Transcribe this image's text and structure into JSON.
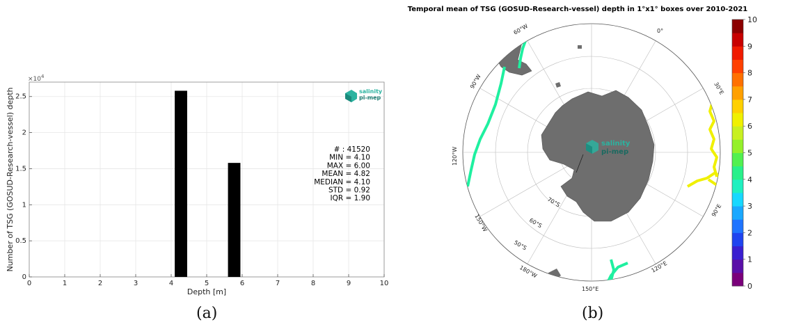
{
  "chart_data": [
    {
      "type": "bar",
      "panel_label": "(a)",
      "xlabel": "Depth [m]",
      "ylabel": "Number of TSG (GOSUD-Research-vessel) depth",
      "y_multiplier": "×10",
      "y_multiplier_exp": "4",
      "xlim": [
        0,
        10
      ],
      "ylim": [
        0,
        27000
      ],
      "x_ticks": [
        "0",
        "1",
        "2",
        "3",
        "4",
        "5",
        "6",
        "7",
        "8",
        "9",
        "10"
      ],
      "y_ticks": [
        {
          "v": 0,
          "t": "0"
        },
        {
          "v": 5000,
          "t": "0.5"
        },
        {
          "v": 10000,
          "t": "1"
        },
        {
          "v": 15000,
          "t": "1.5"
        },
        {
          "v": 20000,
          "t": "2"
        },
        {
          "v": 25000,
          "t": "2.5"
        }
      ],
      "bars": [
        {
          "x0": 4.1,
          "x1": 4.45,
          "value": 25800
        },
        {
          "x0": 5.6,
          "x1": 5.95,
          "value": 15800
        }
      ],
      "bar_color": "#000000",
      "grid": true,
      "stats": [
        "# : 41520",
        "MIN = 4.10",
        "MAX =  6.00",
        "MEAN = 4.82",
        "MEDIAN = 4.10",
        "STD = 0.92",
        "IQR = 1.90"
      ],
      "logo": {
        "line1": "salinity",
        "line2": "pi-mep"
      }
    },
    {
      "type": "map",
      "panel_label": "(b)",
      "title": "Temporal mean of TSG (GOSUD-Research-vessel) depth in 1°x1° boxes over 2010-2021",
      "projection": "south-polar-stereographic",
      "lon_labels": [
        "0°",
        "30°E",
        "60°W",
        "90°W",
        "90°E",
        "120°W",
        "120°E",
        "150°W",
        "150°E",
        "180°W"
      ],
      "lat_labels": [
        "50°S",
        "60°S",
        "70°S"
      ],
      "colorbar": {
        "min": 0,
        "max": 10,
        "ticks": [
          "0",
          "1",
          "2",
          "3",
          "4",
          "5",
          "6",
          "7",
          "8",
          "9",
          "10"
        ],
        "colors": [
          "#7a007a",
          "#5a0fa8",
          "#3a1fd0",
          "#1f44f0",
          "#1f74ff",
          "#1aa8ff",
          "#17d8ff",
          "#1ff0c0",
          "#28f08a",
          "#52f050",
          "#94f02a",
          "#c8f020",
          "#f0f000",
          "#ffd000",
          "#ffa000",
          "#ff7000",
          "#ff4000",
          "#f01a00",
          "#c80000",
          "#8c0000"
        ]
      },
      "tracks": [
        {
          "value": 4.1,
          "color": "#1ff0a0"
        },
        {
          "value": 6.0,
          "color": "#f0f000"
        }
      ],
      "logo": {
        "line1": "salinity",
        "line2": "pi-mep"
      }
    }
  ]
}
